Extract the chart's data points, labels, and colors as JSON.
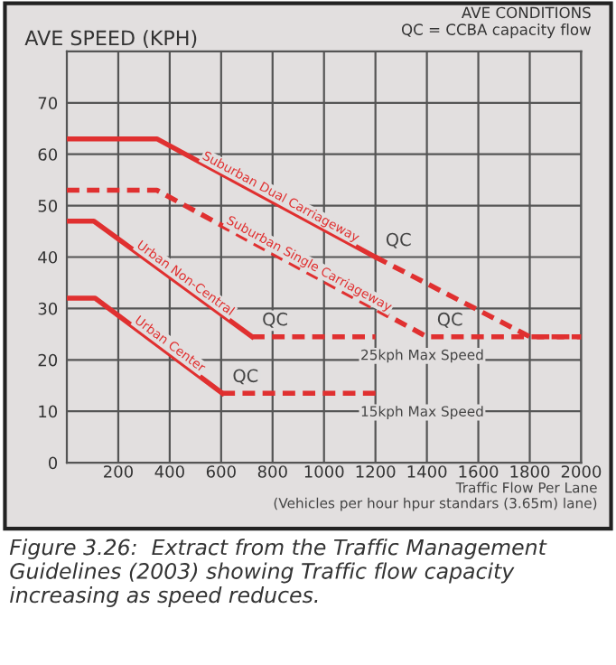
{
  "chart_data": {
    "type": "line",
    "ylabel": "AVE SPEED (KPH)",
    "subtitle": "AVE CONDITIONS\nQC = CCBA capacity flow",
    "xlabel": "Traffic Flow Per Lane\n(Vehicles per hour hpur standars (3.65m) lane)",
    "series": [
      {
        "name": "Suburban Dual Carriageway",
        "color": "#e03030",
        "line_style": "solid",
        "x": [
          0,
          350,
          1200
        ],
        "values": [
          63,
          63,
          40
        ]
      },
      {
        "color": "#e03030",
        "line_style": "dashed",
        "x": [
          1200,
          1800,
          2000
        ],
        "values": [
          40,
          24.5,
          24.5
        ]
      },
      {
        "name": "Suburban Single Carriageway",
        "color": "#e03030",
        "line_style": "dashed",
        "x": [
          0,
          350,
          1400,
          2000
        ],
        "values": [
          53,
          53,
          24.5,
          24.5
        ]
      },
      {
        "name": "Urban Non-Central",
        "color": "#e03030",
        "line_style": "solid",
        "x": [
          0,
          105,
          720
        ],
        "values": [
          47,
          47,
          24.5
        ]
      },
      {
        "color": "#e03030",
        "line_style": "dashed",
        "x": [
          720,
          1200
        ],
        "values": [
          24.5,
          24.5
        ]
      },
      {
        "name": "Urban Center",
        "color": "#e03030",
        "line_style": "solid",
        "x": [
          0,
          110,
          605
        ],
        "values": [
          32,
          32,
          13.5
        ]
      },
      {
        "color": "#e03030",
        "line_style": "dashed",
        "x": [
          605,
          1200
        ],
        "values": [
          13.5,
          13.5
        ]
      }
    ],
    "annotations": [
      {
        "text": "QC",
        "x": 1200,
        "y": 40
      },
      {
        "text": "QC",
        "x": 1400,
        "y": 24.5
      },
      {
        "text": "QC",
        "x": 720,
        "y": 24.5
      },
      {
        "text": "QC",
        "x": 605,
        "y": 13.5
      },
      {
        "text": "25kph Max Speed",
        "x": 1200,
        "y": 24.5
      },
      {
        "text": "15kph Max Speed",
        "x": 1200,
        "y": 13.5
      },
      "Figure 3.26:  Extract from the Traffic Management Guidelines (2003) showing Traffic flow capacity increasing as speed reduces."
    ],
    "xlim": [
      0,
      2000
    ],
    "xticks": [
      200,
      400,
      600,
      800,
      1000,
      1200,
      1400,
      1600,
      1800,
      2000
    ],
    "ylim": [
      0,
      80
    ],
    "yticks": [
      0,
      10,
      20,
      30,
      40,
      50,
      60,
      70,
      {
        "value": 80,
        "label": null
      }
    ],
    "grid": true,
    "legend": false,
    "marker": "none"
  }
}
